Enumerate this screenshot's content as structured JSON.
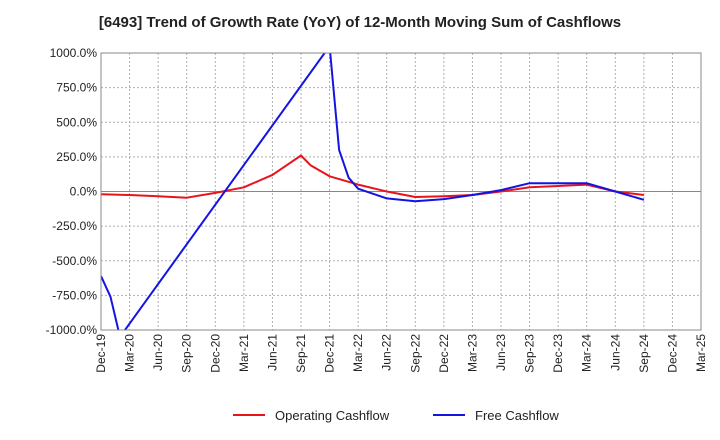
{
  "chart_data": {
    "type": "line",
    "title": "[6493]  Trend of Growth Rate (YoY) of 12-Month Moving Sum of Cashflows",
    "xlabel": "",
    "ylabel": "",
    "ylim": [
      -1000,
      1000
    ],
    "y_ticks": [
      "1000.0%",
      "750.0%",
      "500.0%",
      "250.0%",
      "0.0%",
      "-250.0%",
      "-500.0%",
      "-750.0%",
      "-1000.0%"
    ],
    "x_ticks": [
      "Dec-19",
      "Mar-20",
      "Jun-20",
      "Sep-20",
      "Dec-20",
      "Mar-21",
      "Jun-21",
      "Sep-21",
      "Dec-21",
      "Mar-22",
      "Jun-22",
      "Sep-22",
      "Dec-22",
      "Mar-23",
      "Jun-23",
      "Sep-23",
      "Dec-23",
      "Mar-24",
      "Jun-24",
      "Sep-24",
      "Dec-24",
      "Mar-25"
    ],
    "x_range": [
      "2019-12",
      "2025-03"
    ],
    "grid": true,
    "legend_position": "bottom",
    "series": [
      {
        "name": "Operating Cashflow",
        "color": "#e8141c",
        "points": [
          [
            "2019-12",
            -20
          ],
          [
            "2020-03",
            -25
          ],
          [
            "2020-06",
            -35
          ],
          [
            "2020-09",
            -45
          ],
          [
            "2020-12",
            -10
          ],
          [
            "2021-03",
            30
          ],
          [
            "2021-06",
            120
          ],
          [
            "2021-09",
            260
          ],
          [
            "2021-10",
            190
          ],
          [
            "2021-12",
            110
          ],
          [
            "2022-03",
            50
          ],
          [
            "2022-06",
            0
          ],
          [
            "2022-09",
            -40
          ],
          [
            "2022-12",
            -35
          ],
          [
            "2023-03",
            -25
          ],
          [
            "2023-06",
            0
          ],
          [
            "2023-09",
            30
          ],
          [
            "2023-12",
            40
          ],
          [
            "2024-03",
            50
          ],
          [
            "2024-06",
            0
          ],
          [
            "2024-09",
            -25
          ]
        ]
      },
      {
        "name": "Free Cashflow",
        "color": "#1414e0",
        "points": [
          [
            "2019-12",
            -610
          ],
          [
            "2020-01",
            -760
          ],
          [
            "2020-02",
            -1050
          ],
          [
            "2021-12",
            1050
          ],
          [
            "2022-01",
            300
          ],
          [
            "2022-02",
            100
          ],
          [
            "2022-03",
            20
          ],
          [
            "2022-06",
            -50
          ],
          [
            "2022-09",
            -70
          ],
          [
            "2022-12",
            -55
          ],
          [
            "2023-03",
            -25
          ],
          [
            "2023-06",
            10
          ],
          [
            "2023-09",
            60
          ],
          [
            "2023-12",
            60
          ],
          [
            "2024-03",
            60
          ],
          [
            "2024-06",
            0
          ],
          [
            "2024-09",
            -60
          ]
        ]
      }
    ]
  }
}
